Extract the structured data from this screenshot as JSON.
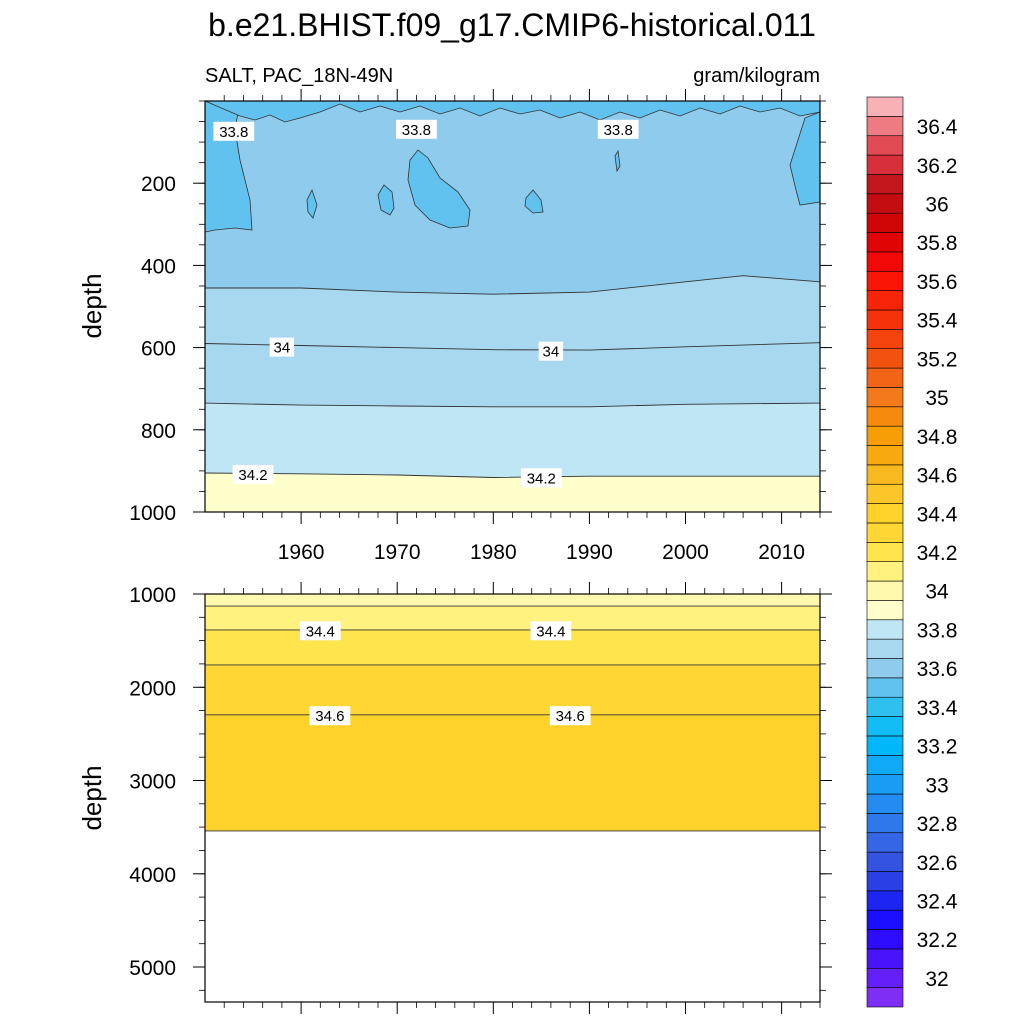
{
  "chart_data": {
    "type": "contour",
    "title": "b.e21.BHIST.f09_g17.CMIP6-historical.011",
    "left_subtitle": "SALT, PAC_18N-49N",
    "right_subtitle": "gram/kilogram",
    "x_range": [
      1950,
      2014
    ],
    "x_ticks": [
      1960,
      1970,
      1980,
      1990,
      2000,
      2010
    ],
    "x_tick_labels": [
      "1960",
      "1970",
      "1980",
      "1990",
      "2000",
      "2010"
    ],
    "panels": [
      {
        "name": "upper",
        "ylabel": "depth",
        "ylim": [
          0,
          1000
        ],
        "y_ticks": [
          200,
          400,
          600,
          800,
          1000
        ],
        "y_tick_labels": [
          "200",
          "400",
          "600",
          "800",
          "1000"
        ],
        "bands": [
          {
            "level": 34.2,
            "color": "#ffffcc"
          },
          {
            "level": 34.0,
            "color": "#bfe6f5"
          },
          {
            "level": 33.9,
            "color": "#a7d8f0"
          },
          {
            "level": 33.8,
            "color": "#8ecbed"
          },
          {
            "level": 33.7,
            "color": "#62c2ef"
          }
        ],
        "contours": [
          {
            "level": 34.2,
            "x": [
              1950,
              1960,
              1970,
              1980,
              1990,
              2000,
              2014
            ],
            "y": [
              905,
              907,
              910,
              916,
              913,
              913,
              913
            ]
          },
          {
            "level": 34.1,
            "x": [
              1950,
              1960,
              1970,
              1980,
              1990,
              2000,
              2014
            ],
            "y": [
              735,
              740,
              742,
              744,
              744,
              738,
              735
            ]
          },
          {
            "level": 34.0,
            "x": [
              1950,
              1960,
              1970,
              1980,
              1990,
              2000,
              2014
            ],
            "y": [
              590,
              595,
              600,
              605,
              606,
              598,
              588
            ]
          },
          {
            "level": 33.9,
            "x": [
              1950,
              1960,
              1970,
              1980,
              1990,
              2000,
              2006,
              2014
            ],
            "y": [
              455,
              455,
              465,
              470,
              465,
              440,
              425,
              440
            ]
          }
        ],
        "contour_labels": [
          {
            "text": "33.8",
            "x": 1953,
            "y": 75
          },
          {
            "text": "33.8",
            "x": 1972,
            "y": 70
          },
          {
            "text": "33.8",
            "x": 1993,
            "y": 70
          },
          {
            "text": "34",
            "x": 1958,
            "y": 600
          },
          {
            "text": "34",
            "x": 1986,
            "y": 610
          },
          {
            "text": "34.2",
            "x": 1955,
            "y": 910
          },
          {
            "text": "34.2",
            "x": 1985,
            "y": 918
          }
        ]
      },
      {
        "name": "lower",
        "ylabel": "depth",
        "ylim": [
          1000,
          5375
        ],
        "y_ticks": [
          1000,
          2000,
          3000,
          4000,
          5000
        ],
        "y_tick_labels": [
          "1000",
          "2000",
          "3000",
          "4000",
          "5000"
        ],
        "bands": [
          {
            "level": 34.3,
            "color": "#fff9ad"
          },
          {
            "level": 34.4,
            "color": "#fff27f"
          },
          {
            "level": 34.5,
            "color": "#ffe44d"
          },
          {
            "level": 34.6,
            "color": "#ffd633"
          },
          {
            "level": 34.7,
            "color": "#fed22b"
          }
        ],
        "contours": [
          {
            "level": 34.3,
            "y": 1130
          },
          {
            "level": 34.4,
            "y": 1385
          },
          {
            "level": 34.5,
            "y": 1760
          },
          {
            "level": 34.6,
            "y": 2295
          },
          {
            "level": 34.7,
            "y": 3540
          }
        ],
        "contour_labels": [
          {
            "text": "34.4",
            "x": 1962,
            "y": 1400
          },
          {
            "text": "34.4",
            "x": 1986,
            "y": 1400
          },
          {
            "text": "34.6",
            "x": 1963,
            "y": 2310
          },
          {
            "text": "34.6",
            "x": 1988,
            "y": 2310
          }
        ]
      }
    ],
    "colorbar": {
      "orientation": "vertical",
      "min": 31.9,
      "max": 36.6,
      "step": 0.1,
      "labels": [
        "32",
        "32.2",
        "32.4",
        "32.6",
        "32.8",
        "33",
        "33.2",
        "33.4",
        "33.6",
        "33.8",
        "34",
        "34.2",
        "34.4",
        "34.6",
        "34.8",
        "35",
        "35.2",
        "35.4",
        "35.6",
        "35.8",
        "36",
        "36.2",
        "36.4"
      ],
      "colors": [
        "#7f2ef5",
        "#6320f8",
        "#4a14fb",
        "#2d0cff",
        "#1a10ff",
        "#1d25f0",
        "#2a3fe6",
        "#3353e0",
        "#3566e6",
        "#2f78ec",
        "#248bf0",
        "#1a9cf5",
        "#0fa9f8",
        "#00b7fa",
        "#12bcf4",
        "#2fc0ef",
        "#62c2ef",
        "#8ecbed",
        "#a7d8f0",
        "#bfe6f5",
        "#ffffcc",
        "#fff9ad",
        "#fff27f",
        "#ffe44d",
        "#ffd633",
        "#fed22b",
        "#fcc62a",
        "#f8b820",
        "#f7a90f",
        "#f79d06",
        "#f58a0f",
        "#f4791a",
        "#f26517",
        "#f25210",
        "#f4430c",
        "#f5330a",
        "#f82408",
        "#fa1507",
        "#f20806",
        "#e10404",
        "#d00606",
        "#c40d10",
        "#c2181d",
        "#d8303a",
        "#e24b54",
        "#ee7a82",
        "#f8b2b6"
      ]
    }
  }
}
